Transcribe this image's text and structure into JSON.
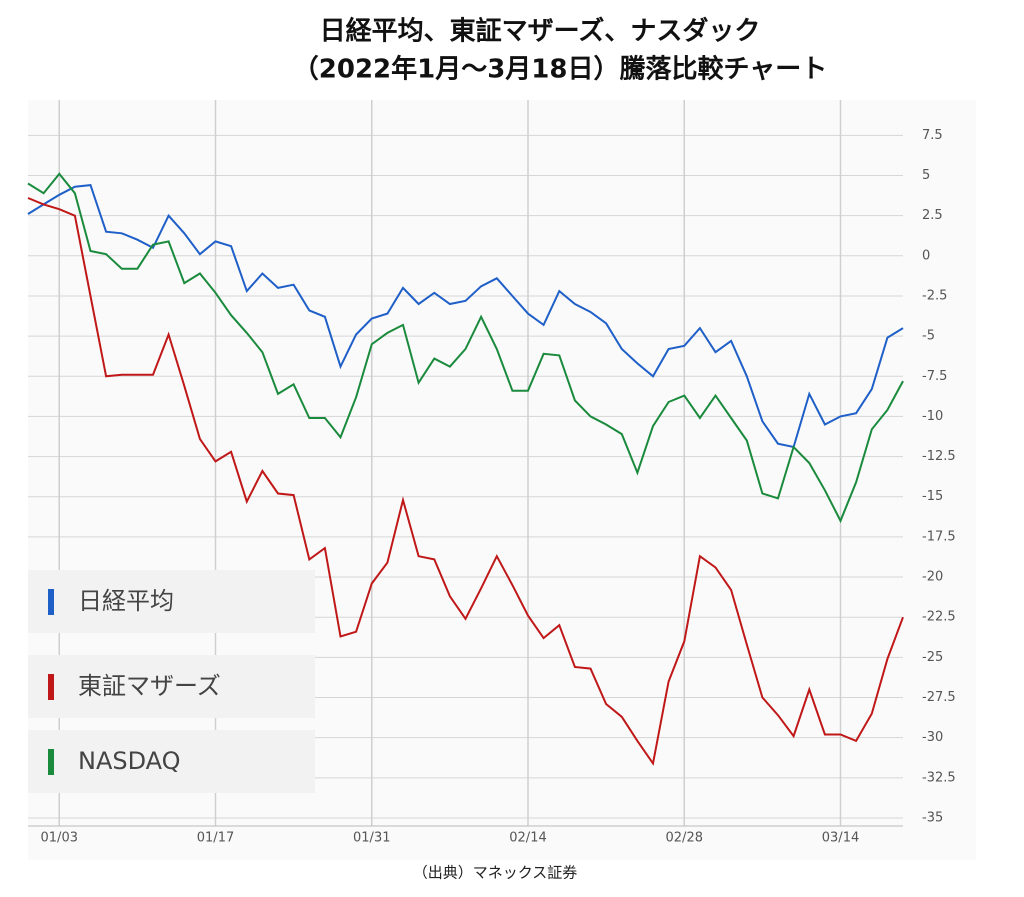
{
  "chart_data": {
    "type": "line",
    "title": [
      "日経平均、東証マザーズ、ナスダック",
      "（2022年1月～3月18日）騰落比較チャート"
    ],
    "source": "（出典）マネックス証券",
    "categories": [
      null,
      null,
      "01/03",
      null,
      null,
      null,
      null,
      null,
      null,
      null,
      null,
      null,
      "01/17",
      null,
      null,
      null,
      null,
      null,
      null,
      null,
      null,
      null,
      "01/31",
      null,
      null,
      null,
      null,
      null,
      null,
      null,
      null,
      null,
      "02/14",
      null,
      null,
      null,
      null,
      null,
      null,
      null,
      null,
      null,
      "02/28",
      null,
      null,
      null,
      null,
      null,
      null,
      null,
      null,
      null,
      "03/14",
      null,
      null,
      null,
      null
    ],
    "series": [
      {
        "name": "日経平均",
        "color": "#1f5fc8",
        "values": [
          2.6,
          3.2,
          3.8,
          4.3,
          4.4,
          1.5,
          1.4,
          1.0,
          0.5,
          2.5,
          1.4,
          0.1,
          0.9,
          0.6,
          -2.2,
          -1.1,
          -2.0,
          -1.8,
          -3.4,
          -3.8,
          -6.9,
          -4.9,
          -3.9,
          -3.6,
          -2.0,
          -3.0,
          -2.3,
          -3.0,
          -2.8,
          -1.9,
          -1.4,
          -2.5,
          -3.6,
          -4.3,
          -2.2,
          -3.0,
          -3.5,
          -4.2,
          -5.8,
          -6.7,
          -7.5,
          -5.8,
          -5.6,
          -4.5,
          -6.0,
          -5.3,
          -7.5,
          -10.3,
          -11.7,
          -11.9,
          -8.6,
          -10.5,
          -10.0,
          -9.8,
          -8.3,
          -5.1,
          -4.5
        ]
      },
      {
        "name": "東証マザーズ",
        "color": "#c01818",
        "values": [
          3.6,
          3.2,
          2.9,
          2.5,
          -2.5,
          -7.5,
          -7.4,
          -7.4,
          -7.4,
          -4.9,
          -8.1,
          -11.4,
          -12.8,
          -12.2,
          -15.3,
          -13.4,
          -14.8,
          -14.9,
          -18.9,
          -18.2,
          -23.7,
          -23.4,
          -20.4,
          -19.1,
          -15.2,
          -18.7,
          -18.9,
          -21.2,
          -22.6,
          -20.7,
          -18.7,
          -20.5,
          -22.4,
          -23.8,
          -23.0,
          -25.6,
          -25.7,
          -27.9,
          -28.7,
          -30.2,
          -31.6,
          -26.5,
          -24.0,
          -18.7,
          -19.4,
          -20.8,
          -24.2,
          -27.5,
          -28.6,
          -29.9,
          -27.0,
          -29.8,
          -29.8,
          -30.2,
          -28.5,
          -25.1,
          -22.5
        ]
      },
      {
        "name": "NASDAQ",
        "color": "#1a8a3c",
        "values": [
          4.5,
          3.9,
          5.1,
          3.9,
          0.3,
          0.1,
          -0.8,
          -0.8,
          0.7,
          0.9,
          -1.7,
          -1.1,
          -2.3,
          -3.7,
          -4.8,
          -6.0,
          -8.6,
          -8.0,
          -10.1,
          -10.1,
          -11.3,
          -8.8,
          -5.5,
          -4.8,
          -4.3,
          -7.9,
          -6.4,
          -6.9,
          -5.8,
          -3.8,
          -5.8,
          -8.4,
          -8.4,
          -6.1,
          -6.2,
          -9.0,
          -10.0,
          -10.5,
          -11.1,
          -13.5,
          -10.6,
          -9.1,
          -8.7,
          -10.1,
          -8.7,
          -10.1,
          -11.5,
          -14.8,
          -15.1,
          -11.9,
          -12.9,
          -14.6,
          -16.5,
          -14.1,
          -10.8,
          -9.6,
          -7.8
        ]
      }
    ],
    "ylim": [
      -35,
      9.7
    ],
    "yticks": [
      7.5,
      5,
      2.5,
      0,
      -2.5,
      -5,
      -7.5,
      -10,
      -12.5,
      -15,
      -17.5,
      -20,
      -22.5,
      -25,
      -27.5,
      -30,
      -32.5,
      -35
    ],
    "grid": true,
    "legend": "left"
  }
}
